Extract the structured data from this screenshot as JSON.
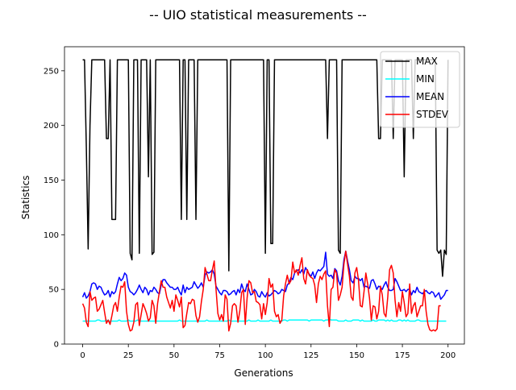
{
  "chart_data": {
    "type": "line",
    "title": "-- UIO statistical measurements --",
    "xlabel": "Generations",
    "ylabel": "Statistics",
    "xlim": [
      -9.95,
      208.95
    ],
    "ylim": [
      0,
      272
    ],
    "xticks": [
      0,
      25,
      50,
      75,
      100,
      125,
      150,
      175,
      200
    ],
    "yticks": [
      0,
      50,
      100,
      150,
      200,
      250
    ],
    "grid": false,
    "legend_position": "top-right",
    "x_start": 0,
    "x_step": 1,
    "series": [
      {
        "name": "MAX",
        "color": "#000000",
        "values": [
          260,
          260,
          180,
          87,
          200,
          260,
          260,
          260,
          260,
          260,
          260,
          260,
          260,
          188,
          188,
          260,
          114,
          114,
          114,
          260,
          260,
          260,
          260,
          260,
          260,
          260,
          83,
          77,
          260,
          260,
          260,
          83,
          260,
          260,
          260,
          260,
          153,
          260,
          82,
          84,
          260,
          260,
          260,
          260,
          260,
          260,
          260,
          260,
          260,
          260,
          260,
          260,
          260,
          260,
          114,
          260,
          260,
          114,
          260,
          260,
          260,
          260,
          114,
          260,
          260,
          260,
          260,
          260,
          260,
          260,
          260,
          260,
          260,
          260,
          260,
          260,
          260,
          260,
          260,
          260,
          67,
          260,
          260,
          260,
          260,
          260,
          260,
          260,
          260,
          260,
          260,
          260,
          260,
          260,
          260,
          260,
          260,
          260,
          260,
          260,
          83,
          260,
          260,
          92,
          92,
          260,
          260,
          260,
          260,
          260,
          260,
          260,
          260,
          260,
          260,
          260,
          260,
          260,
          260,
          260,
          260,
          260,
          260,
          260,
          260,
          260,
          260,
          260,
          260,
          260,
          260,
          260,
          260,
          260,
          188,
          260,
          260,
          260,
          260,
          260,
          86,
          83,
          260,
          260,
          260,
          260,
          260,
          260,
          260,
          260,
          260,
          260,
          260,
          260,
          260,
          260,
          260,
          260,
          260,
          260,
          260,
          260,
          188,
          188,
          260,
          260,
          260,
          260,
          260,
          260,
          188,
          260,
          260,
          260,
          260,
          260,
          153,
          260,
          260,
          260,
          260,
          188,
          260,
          260,
          260,
          260,
          260,
          260,
          260,
          260,
          260,
          260,
          260,
          260,
          86,
          83,
          86,
          62,
          86,
          82,
          260
        ]
      },
      {
        "name": "MIN",
        "color": "#00ffff",
        "values": [
          21,
          21,
          21,
          21,
          21,
          21,
          21,
          21,
          22,
          22,
          21,
          21,
          21,
          22,
          21,
          21,
          21,
          21,
          21,
          21,
          22,
          21,
          21,
          21,
          21,
          22,
          21,
          21,
          21,
          21,
          22,
          21,
          21,
          21,
          21,
          21,
          21,
          21,
          21,
          21,
          21,
          21,
          21,
          21,
          21,
          21,
          21,
          21,
          21,
          21,
          21,
          21,
          21,
          22,
          21,
          21,
          21,
          21,
          21,
          21,
          21,
          21,
          21,
          21,
          21,
          21,
          21,
          21,
          22,
          21,
          21,
          21,
          21,
          21,
          21,
          21,
          21,
          21,
          21,
          21,
          22,
          21,
          21,
          21,
          21,
          21,
          21,
          21,
          21,
          21,
          21,
          22,
          21,
          21,
          21,
          21,
          22,
          21,
          21,
          21,
          21,
          21,
          21,
          22,
          21,
          21,
          21,
          21,
          21,
          21,
          22,
          22,
          21,
          22,
          22,
          22,
          22,
          22,
          22,
          22,
          22,
          22,
          22,
          22,
          21,
          22,
          22,
          22,
          22,
          22,
          22,
          22,
          21,
          22,
          22,
          23,
          22,
          22,
          22,
          22,
          21,
          21,
          21,
          21,
          22,
          21,
          21,
          21,
          22,
          22,
          22,
          22,
          21,
          22,
          21,
          21,
          21,
          21,
          21,
          22,
          21,
          21,
          22,
          22,
          22,
          22,
          21,
          22,
          21,
          22,
          21,
          21,
          21,
          22,
          22,
          21,
          22,
          21,
          22,
          21,
          21,
          21,
          21,
          22,
          22,
          21,
          21,
          21,
          21,
          21,
          21,
          21,
          21,
          21,
          21,
          21,
          21,
          21,
          21,
          21
        ]
      },
      {
        "name": "MEAN",
        "color": "#0000ff",
        "values": [
          43,
          47,
          42,
          44,
          48,
          55,
          56,
          55,
          50,
          53,
          52,
          48,
          45,
          46,
          49,
          43,
          48,
          46,
          48,
          55,
          61,
          58,
          60,
          65,
          63,
          52,
          48,
          47,
          45,
          47,
          50,
          54,
          50,
          47,
          52,
          50,
          45,
          49,
          48,
          52,
          50,
          47,
          46,
          54,
          59,
          59,
          56,
          54,
          52,
          52,
          50,
          50,
          52,
          48,
          45,
          54,
          47,
          52,
          50,
          51,
          52,
          57,
          54,
          51,
          53,
          56,
          52,
          63,
          66,
          65,
          66,
          68,
          64,
          53,
          50,
          47,
          45,
          49,
          49,
          48,
          45,
          46,
          48,
          49,
          45,
          50,
          47,
          55,
          50,
          48,
          55,
          50,
          45,
          46,
          50,
          48,
          44,
          43,
          48,
          45,
          43,
          47,
          44,
          45,
          47,
          49,
          48,
          46,
          47,
          50,
          49,
          48,
          54,
          56,
          61,
          59,
          65,
          67,
          68,
          65,
          68,
          64,
          70,
          67,
          64,
          62,
          66,
          60,
          65,
          68,
          67,
          69,
          71,
          84,
          64,
          62,
          63,
          60,
          69,
          67,
          58,
          54,
          62,
          77,
          85,
          76,
          68,
          58,
          56,
          62,
          60,
          60,
          58,
          60,
          52,
          53,
          52,
          51,
          58,
          59,
          55,
          50,
          53,
          52,
          50,
          54,
          57,
          52,
          49,
          49,
          50,
          60,
          57,
          53,
          49,
          49,
          50,
          48,
          50,
          50,
          45,
          49,
          47,
          52,
          48,
          47,
          46,
          48,
          49,
          47,
          46,
          48,
          47,
          43,
          45,
          47,
          41,
          43,
          45,
          49,
          49
        ]
      },
      {
        "name": "STDEV",
        "color": "#ff0000",
        "values": [
          37,
          33,
          20,
          16,
          48,
          40,
          42,
          43,
          30,
          32,
          36,
          40,
          29,
          19,
          22,
          18,
          26,
          35,
          38,
          30,
          43,
          53,
          52,
          57,
          30,
          18,
          12,
          13,
          20,
          36,
          38,
          17,
          27,
          37,
          33,
          28,
          21,
          24,
          40,
          35,
          19,
          37,
          48,
          58,
          52,
          52,
          43,
          38,
          33,
          40,
          30,
          45,
          40,
          34,
          43,
          15,
          17,
          28,
          38,
          37,
          41,
          40,
          26,
          20,
          25,
          39,
          50,
          70,
          64,
          58,
          58,
          68,
          76,
          50,
          28,
          22,
          27,
          21,
          45,
          41,
          12,
          19,
          35,
          37,
          35,
          20,
          30,
          47,
          50,
          18,
          42,
          58,
          56,
          47,
          48,
          39,
          38,
          36,
          23,
          37,
          27,
          38,
          60,
          52,
          55,
          30,
          25,
          27,
          19,
          22,
          44,
          55,
          63,
          55,
          58,
          75,
          65,
          68,
          63,
          72,
          79,
          60,
          55,
          68,
          63,
          61,
          60,
          54,
          38,
          55,
          62,
          59,
          64,
          67,
          35,
          16,
          50,
          52,
          68,
          65,
          40,
          45,
          52,
          73,
          85,
          73,
          62,
          43,
          40,
          65,
          70,
          58,
          35,
          34,
          48,
          65,
          55,
          42,
          22,
          35,
          34,
          23,
          30,
          53,
          45,
          28,
          25,
          43,
          68,
          72,
          65,
          40,
          25,
          38,
          30,
          48,
          38,
          25,
          28,
          55,
          28,
          35,
          38,
          25,
          30,
          35,
          35,
          50,
          30,
          18,
          13,
          12,
          13,
          12,
          14,
          35,
          35
        ]
      }
    ]
  }
}
